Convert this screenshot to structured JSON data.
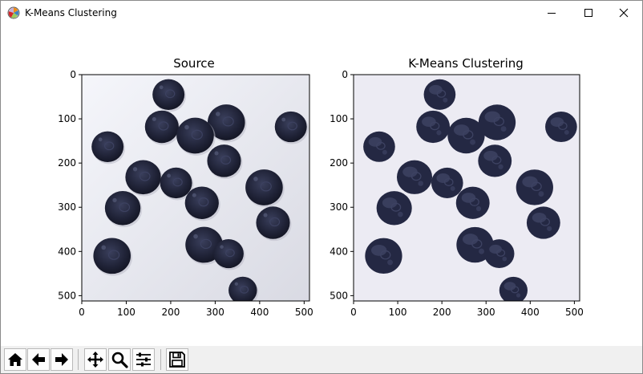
{
  "window": {
    "title": "K-Means Clustering",
    "icons": {
      "app": "matplotlib-logo-icon",
      "minimize": "minimize-icon",
      "maximize": "maximize-icon",
      "close": "close-icon"
    }
  },
  "figure": {
    "left_title": "Source",
    "right_title": "K-Means Clustering",
    "x_ticks": [
      "0",
      "100",
      "200",
      "300",
      "400",
      "500"
    ],
    "y_ticks": [
      "0",
      "100",
      "200",
      "300",
      "400",
      "500"
    ],
    "image_size": [
      512,
      512
    ],
    "colors": {
      "source_bg": "#e9eaf2",
      "cluster_bg": "#ecebf3",
      "berry_dark": "#1d1f33",
      "berry_mid": "#2f3450",
      "berry_cluster": "#242843",
      "berry_cluster_hi": "#3d4262"
    }
  },
  "toolbar": {
    "buttons": [
      {
        "name": "home-button",
        "icon": "home-icon"
      },
      {
        "name": "back-button",
        "icon": "arrow-left-icon"
      },
      {
        "name": "forward-button",
        "icon": "arrow-right-icon"
      },
      {
        "name": "pan-button",
        "icon": "move-icon"
      },
      {
        "name": "zoom-button",
        "icon": "magnifier-icon"
      },
      {
        "name": "subplots-button",
        "icon": "sliders-icon"
      },
      {
        "name": "save-button",
        "icon": "floppy-disk-icon"
      }
    ]
  }
}
